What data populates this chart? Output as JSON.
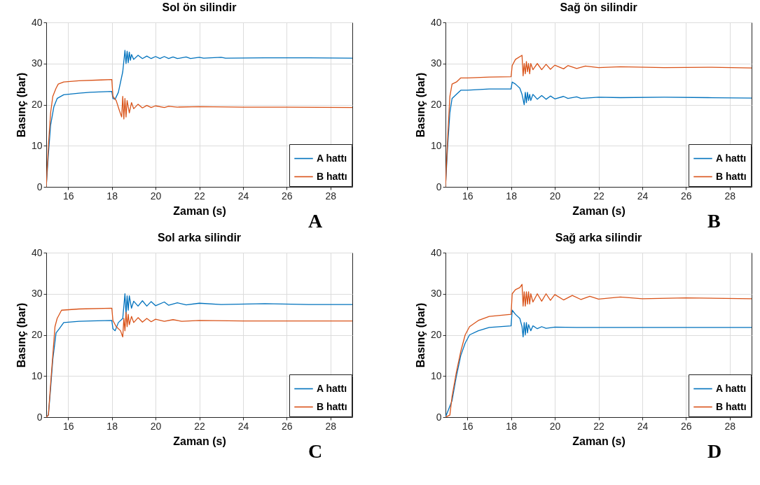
{
  "chart_data": [
    {
      "type": "line",
      "title": "Sol ön silindir",
      "xlabel": "Zaman (s)",
      "ylabel": "Basınç (bar)",
      "xlim": [
        15,
        29
      ],
      "xticks": [
        16,
        18,
        20,
        22,
        24,
        26,
        28
      ],
      "ylim": [
        0,
        40
      ],
      "yticks": [
        0,
        10,
        20,
        30,
        40
      ],
      "grid": true,
      "legend": "bottom right",
      "annotations": [
        "A"
      ],
      "series": [
        {
          "name": "A hattı",
          "color": "#0072bd",
          "x": [
            15,
            15.1,
            15.2,
            15.35,
            15.5,
            15.8,
            16.5,
            17,
            18,
            18.05,
            18.15,
            18.3,
            18.5,
            18.6,
            18.65,
            18.7,
            18.75,
            18.8,
            18.85,
            18.9,
            19,
            19.2,
            19.4,
            19.6,
            19.8,
            20,
            20.2,
            20.4,
            20.6,
            20.8,
            21,
            21.4,
            21.6,
            22,
            22.2,
            23,
            23.2,
            25,
            27,
            29
          ],
          "values": [
            0,
            8,
            15,
            19.5,
            21.5,
            22.4,
            22.8,
            23,
            23.2,
            21.5,
            21.3,
            23,
            28,
            33.2,
            30,
            33,
            30.2,
            32.8,
            30.8,
            32.2,
            31,
            32,
            31.2,
            31.8,
            31.2,
            31.7,
            31.2,
            31.7,
            31.2,
            31.6,
            31.2,
            31.6,
            31.2,
            31.5,
            31.3,
            31.5,
            31.3,
            31.4,
            31.4,
            31.3
          ]
        },
        {
          "name": "B hattı",
          "color": "#d95319",
          "x": [
            15,
            15.1,
            15.2,
            15.3,
            15.45,
            15.55,
            15.8,
            16.5,
            17.5,
            18,
            18.05,
            18.2,
            18.35,
            18.45,
            18.5,
            18.55,
            18.6,
            18.65,
            18.7,
            18.8,
            18.9,
            19,
            19.2,
            19.4,
            19.6,
            19.8,
            20,
            20.4,
            20.6,
            21,
            22,
            24,
            26,
            29
          ],
          "values": [
            0,
            10,
            18,
            22,
            24,
            25,
            25.5,
            25.8,
            26,
            26.1,
            22,
            21,
            18.5,
            17,
            22,
            16.5,
            21.5,
            17,
            21,
            18,
            20.5,
            19,
            20.1,
            19.2,
            19.8,
            19.3,
            19.7,
            19.3,
            19.6,
            19.4,
            19.5,
            19.4,
            19.4,
            19.3
          ]
        }
      ]
    },
    {
      "type": "line",
      "title": "Sağ ön silindir",
      "xlabel": "Zaman (s)",
      "ylabel": "Basınç (bar)",
      "xlim": [
        15,
        29
      ],
      "xticks": [
        16,
        18,
        20,
        22,
        24,
        26,
        28
      ],
      "ylim": [
        0,
        40
      ],
      "yticks": [
        0,
        10,
        20,
        30,
        40
      ],
      "grid": true,
      "legend": "bottom right",
      "annotations": [
        "B"
      ],
      "series": [
        {
          "name": "A hattı",
          "color": "#0072bd",
          "x": [
            15,
            15.1,
            15.2,
            15.3,
            15.5,
            15.7,
            16,
            17,
            18,
            18.05,
            18.2,
            18.4,
            18.5,
            18.6,
            18.65,
            18.7,
            18.75,
            18.8,
            18.85,
            18.9,
            19,
            19.2,
            19.4,
            19.6,
            19.8,
            20,
            20.4,
            20.6,
            21,
            21.2,
            22,
            23,
            25,
            27,
            29
          ],
          "values": [
            0,
            10,
            18,
            21.5,
            22.5,
            23.5,
            23.5,
            23.8,
            23.8,
            25.5,
            25,
            24,
            22.5,
            20,
            23,
            20.5,
            23,
            21,
            22.5,
            21,
            22.5,
            21.3,
            22.2,
            21.3,
            22.1,
            21.4,
            22,
            21.5,
            21.9,
            21.5,
            21.8,
            21.7,
            21.8,
            21.7,
            21.6
          ]
        },
        {
          "name": "B hattı",
          "color": "#d95319",
          "x": [
            15,
            15.1,
            15.2,
            15.3,
            15.5,
            15.7,
            16,
            17,
            18,
            18.05,
            18.2,
            18.5,
            18.55,
            18.6,
            18.65,
            18.7,
            18.75,
            18.8,
            18.85,
            18.9,
            19,
            19.2,
            19.4,
            19.6,
            19.8,
            20,
            20.4,
            20.6,
            21,
            21.4,
            22,
            23,
            25,
            27,
            29
          ],
          "values": [
            0,
            12,
            22,
            25,
            25.5,
            26.5,
            26.5,
            26.7,
            26.8,
            29.5,
            31,
            32,
            27,
            30,
            27.5,
            30.5,
            28,
            30,
            27.5,
            30,
            28.5,
            30,
            28.5,
            29.8,
            28.6,
            29.6,
            28.7,
            29.5,
            28.8,
            29.4,
            29,
            29.2,
            29,
            29.1,
            28.9
          ]
        }
      ]
    },
    {
      "type": "line",
      "title": "Sol arka silindir",
      "xlabel": "Zaman (s)",
      "ylabel": "Basınç (bar)",
      "xlim": [
        15,
        29
      ],
      "xticks": [
        16,
        18,
        20,
        22,
        24,
        26,
        28
      ],
      "ylim": [
        0,
        40
      ],
      "yticks": [
        0,
        10,
        20,
        30,
        40
      ],
      "grid": true,
      "legend": "bottom right",
      "annotations": [
        "C"
      ],
      "series": [
        {
          "name": "A hattı",
          "color": "#0072bd",
          "x": [
            15,
            15.1,
            15.2,
            15.3,
            15.45,
            15.6,
            15.8,
            16.5,
            17,
            18,
            18.05,
            18.15,
            18.3,
            18.5,
            18.6,
            18.65,
            18.7,
            18.75,
            18.8,
            18.9,
            19,
            19.2,
            19.4,
            19.6,
            19.8,
            20,
            20.4,
            20.6,
            21,
            21.4,
            22,
            23,
            25,
            27,
            29
          ],
          "values": [
            0,
            0.5,
            7,
            14,
            20.5,
            21.5,
            23,
            23.3,
            23.4,
            23.5,
            21.5,
            21,
            23,
            24,
            30,
            25,
            29.5,
            26,
            29.5,
            26.5,
            28.2,
            27,
            28.3,
            27,
            28.1,
            27.1,
            28,
            27.2,
            27.8,
            27.3,
            27.7,
            27.4,
            27.6,
            27.4,
            27.4
          ]
        },
        {
          "name": "B hattı",
          "color": "#d95319",
          "x": [
            15,
            15.1,
            15.2,
            15.3,
            15.4,
            15.5,
            15.7,
            16.5,
            18,
            18.05,
            18.2,
            18.4,
            18.5,
            18.55,
            18.6,
            18.65,
            18.7,
            18.75,
            18.8,
            18.9,
            19,
            19.2,
            19.4,
            19.6,
            19.8,
            20,
            20.4,
            20.8,
            21.2,
            22,
            24,
            26,
            29
          ],
          "values": [
            0,
            0.5,
            8,
            15,
            22,
            24,
            26,
            26.3,
            26.5,
            23.5,
            22,
            21,
            19.5,
            24,
            21,
            25.5,
            22,
            25,
            22.5,
            24.5,
            23,
            24.2,
            23.1,
            24,
            23.2,
            23.8,
            23.3,
            23.7,
            23.3,
            23.5,
            23.4,
            23.4,
            23.4
          ]
        }
      ]
    },
    {
      "type": "line",
      "title": "Sağ arka silindir",
      "xlabel": "Zaman (s)",
      "ylabel": "Basınç (bar)",
      "xlim": [
        15,
        29
      ],
      "xticks": [
        16,
        18,
        20,
        22,
        24,
        26,
        28
      ],
      "ylim": [
        0,
        40
      ],
      "yticks": [
        0,
        10,
        20,
        30,
        40
      ],
      "grid": true,
      "legend": "bottom right",
      "annotations": [
        "D"
      ],
      "series": [
        {
          "name": "A hattı",
          "color": "#0072bd",
          "x": [
            15,
            15.3,
            15.5,
            15.7,
            15.9,
            16.1,
            16.5,
            17,
            18,
            18.05,
            18.2,
            18.4,
            18.5,
            18.55,
            18.6,
            18.65,
            18.7,
            18.75,
            18.8,
            18.9,
            19,
            19.2,
            19.4,
            19.6,
            20,
            21,
            23,
            26,
            29
          ],
          "values": [
            0,
            4,
            10,
            15,
            18,
            20,
            21,
            21.8,
            22.2,
            26,
            25,
            24,
            22,
            19.5,
            23,
            20,
            23,
            20.5,
            22.5,
            21,
            22.2,
            21.5,
            22,
            21.6,
            21.9,
            21.8,
            21.8,
            21.8,
            21.8
          ]
        },
        {
          "name": "B hattı",
          "color": "#d95319",
          "x": [
            15,
            15.2,
            15.3,
            15.5,
            15.7,
            15.9,
            16.1,
            16.5,
            17,
            18,
            18.05,
            18.2,
            18.4,
            18.5,
            18.55,
            18.6,
            18.65,
            18.7,
            18.75,
            18.8,
            18.85,
            18.9,
            19,
            19.2,
            19.4,
            19.6,
            19.8,
            20,
            20.4,
            20.8,
            21.2,
            21.6,
            22,
            23,
            24,
            26,
            29
          ],
          "values": [
            0,
            0.5,
            5,
            11,
            16,
            20,
            22,
            23.5,
            24.5,
            25,
            30,
            31,
            31.5,
            32.3,
            27,
            30.5,
            27,
            30.5,
            27.5,
            30.5,
            27.5,
            30,
            28,
            30,
            28.2,
            30,
            28.4,
            29.8,
            28.5,
            29.6,
            28.6,
            29.4,
            28.7,
            29.2,
            28.8,
            29,
            28.8
          ]
        }
      ]
    }
  ]
}
